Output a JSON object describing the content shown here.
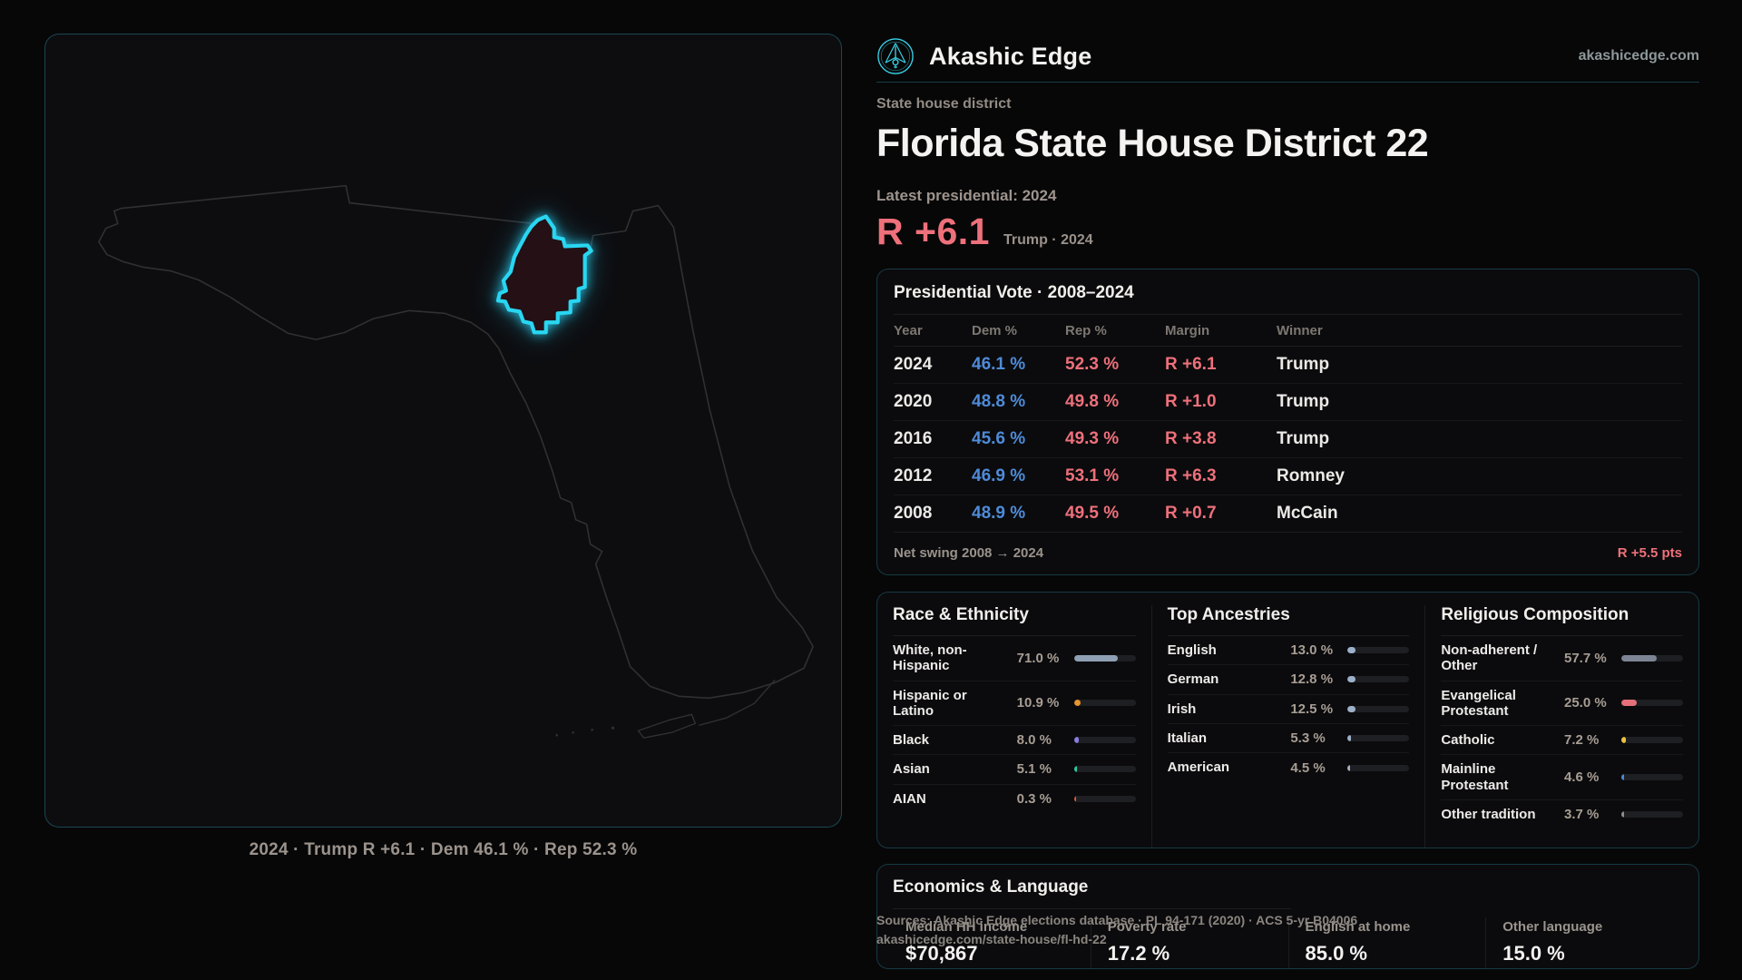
{
  "brand": {
    "name": "Akashic Edge",
    "domain": "akashicedge.com"
  },
  "header": {
    "kicker": "State house district",
    "title": "Florida State House District 22",
    "latest_label": "Latest presidential: 2024",
    "margin_big": "R +6.1",
    "margin_context": "Trump · 2024"
  },
  "map": {
    "caption": "2024 · Trump R +6.1 · Dem 46.1 % · Rep 52.3 %"
  },
  "presidential": {
    "title": "Presidential Vote · 2008–2024",
    "columns": [
      "Year",
      "Dem %",
      "Rep %",
      "Margin",
      "Winner"
    ],
    "rows": [
      {
        "year": "2024",
        "dem": "46.1 %",
        "rep": "52.3 %",
        "margin": "R +6.1",
        "winner": "Trump"
      },
      {
        "year": "2020",
        "dem": "48.8 %",
        "rep": "49.8 %",
        "margin": "R +1.0",
        "winner": "Trump"
      },
      {
        "year": "2016",
        "dem": "45.6 %",
        "rep": "49.3 %",
        "margin": "R +3.8",
        "winner": "Trump"
      },
      {
        "year": "2012",
        "dem": "46.9 %",
        "rep": "53.1 %",
        "margin": "R +6.3",
        "winner": "Romney"
      },
      {
        "year": "2008",
        "dem": "48.9 %",
        "rep": "49.5 %",
        "margin": "R +0.7",
        "winner": "McCain"
      }
    ],
    "net_swing_label": "Net swing 2008 → 2024",
    "net_swing_value": "R +5.5 pts"
  },
  "demographics": {
    "race": {
      "title": "Race & Ethnicity",
      "rows": [
        {
          "label": "White, non-Hispanic",
          "value": "71.0 %",
          "pct": 71.0,
          "color": "#8fa0b5"
        },
        {
          "label": "Hispanic or Latino",
          "value": "10.9 %",
          "pct": 10.9,
          "color": "#e6952f"
        },
        {
          "label": "Black",
          "value": "8.0 %",
          "pct": 8.0,
          "color": "#8b7de0"
        },
        {
          "label": "Asian",
          "value": "5.1 %",
          "pct": 5.1,
          "color": "#2fc79b"
        },
        {
          "label": "AIAN",
          "value": "0.3 %",
          "pct": 0.3,
          "color": "#e05a35"
        }
      ]
    },
    "ancestries": {
      "title": "Top Ancestries",
      "rows": [
        {
          "label": "English",
          "value": "13.0 %",
          "pct": 13.0,
          "color": "#9db0c9"
        },
        {
          "label": "German",
          "value": "12.8 %",
          "pct": 12.8,
          "color": "#9db0c9"
        },
        {
          "label": "Irish",
          "value": "12.5 %",
          "pct": 12.5,
          "color": "#9db0c9"
        },
        {
          "label": "Italian",
          "value": "5.3 %",
          "pct": 5.3,
          "color": "#9db0c9"
        },
        {
          "label": "American",
          "value": "4.5 %",
          "pct": 4.5,
          "color": "#9db0c9"
        }
      ]
    },
    "religion": {
      "title": "Religious Composition",
      "rows": [
        {
          "label": "Non-adherent / Other",
          "value": "57.7 %",
          "pct": 57.7,
          "color": "#7d8595"
        },
        {
          "label": "Evangelical Protestant",
          "value": "25.0 %",
          "pct": 25.0,
          "color": "#e4707a"
        },
        {
          "label": "Catholic",
          "value": "7.2 %",
          "pct": 7.2,
          "color": "#eec23f"
        },
        {
          "label": "Mainline Protestant",
          "value": "4.6 %",
          "pct": 4.6,
          "color": "#4f86dd"
        },
        {
          "label": "Other tradition",
          "value": "3.7 %",
          "pct": 3.7,
          "color": "#8d8d92"
        }
      ]
    }
  },
  "economics": {
    "title": "Economics & Language",
    "stats": [
      {
        "label": "Median HH income",
        "value": "$70,867"
      },
      {
        "label": "Poverty rate",
        "value": "17.2 %"
      },
      {
        "label": "English at home",
        "value": "85.0 %"
      },
      {
        "label": "Other language",
        "value": "15.0 %"
      }
    ]
  },
  "footer": {
    "line1": "Sources: Akashic Edge elections database · PL 94-171 (2020) · ACS 5-yr B04006",
    "line2": "akashicedge.com/state-house/fl-hd-22"
  },
  "colors": {
    "accent": "#29d6f1",
    "dem": "#4e8bd8",
    "rep": "#ee707b"
  }
}
